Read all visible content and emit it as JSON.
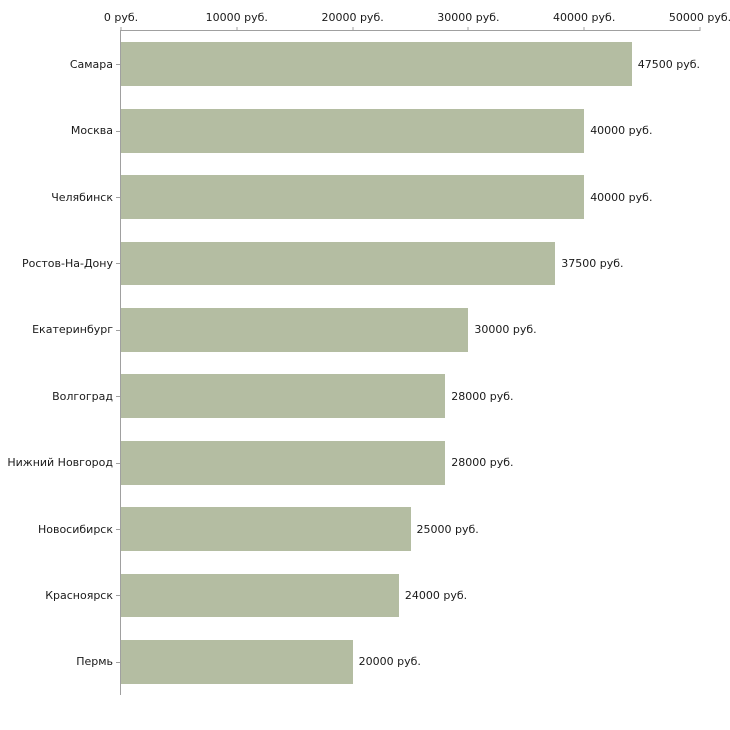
{
  "chart_data": {
    "type": "bar",
    "orientation": "horizontal",
    "title": "",
    "xlabel": "",
    "ylabel": "",
    "categories": [
      "Самара",
      "Москва",
      "Челябинск",
      "Ростов-На-Дону",
      "Екатеринбург",
      "Волгоград",
      "Нижний Новгород",
      "Новосибирск",
      "Красноярск",
      "Пермь"
    ],
    "values": [
      47500,
      40000,
      40000,
      37500,
      30000,
      28000,
      28000,
      25000,
      24000,
      20000
    ],
    "value_labels": [
      "47500 руб.",
      "40000 руб.",
      "40000 руб.",
      "37500 руб.",
      "30000 руб.",
      "28000 руб.",
      "28000 руб.",
      "25000 руб.",
      "24000 руб.",
      "20000 руб."
    ],
    "x_ticks": [
      {
        "value": 0,
        "label": "0 руб."
      },
      {
        "value": 10000,
        "label": "10000 руб."
      },
      {
        "value": 20000,
        "label": "20000 руб."
      },
      {
        "value": 30000,
        "label": "30000 руб."
      },
      {
        "value": 40000,
        "label": "40000 руб."
      },
      {
        "value": 50000,
        "label": "50000 руб."
      }
    ],
    "xlim": [
      0,
      50000
    ],
    "grid": false,
    "legend": false,
    "bar_color": "#b4bda2",
    "axis_color": "#a0a0a0",
    "text_color": "#1a1a1a",
    "background_color": "#ffffff"
  }
}
